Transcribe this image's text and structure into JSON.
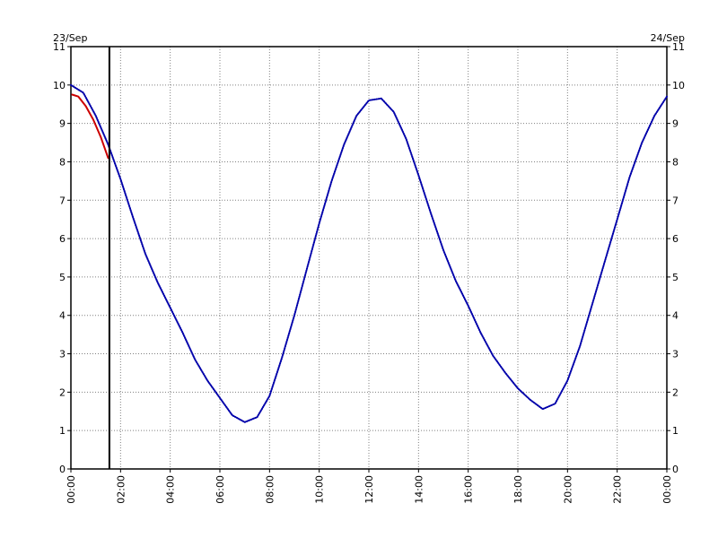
{
  "chart_data": {
    "type": "line",
    "date_left": "23/Sep",
    "date_right": "24/Sep",
    "x_unit": "hours",
    "xlim": [
      0,
      24
    ],
    "ylim": [
      0,
      11
    ],
    "x_ticks": [
      0,
      2,
      4,
      6,
      8,
      10,
      12,
      14,
      16,
      18,
      20,
      22,
      24
    ],
    "x_tick_labels": [
      "00:00",
      "02:00",
      "04:00",
      "06:00",
      "08:00",
      "10:00",
      "12:00",
      "14:00",
      "16:00",
      "18:00",
      "20:00",
      "22:00",
      "00:00"
    ],
    "y_ticks": [
      0,
      1,
      2,
      3,
      4,
      5,
      6,
      7,
      8,
      9,
      10,
      11
    ],
    "y_tick_labels": [
      "0",
      "1",
      "2",
      "3",
      "4",
      "5",
      "6",
      "7",
      "8",
      "9",
      "10",
      "11"
    ],
    "grid": true,
    "now_marker_hour": 1.55,
    "series": [
      {
        "style": "dotted",
        "color": "#0000aa",
        "points": [
          [
            0,
            10.0
          ],
          [
            0.5,
            9.8
          ],
          [
            1.0,
            9.2
          ],
          [
            1.5,
            8.45
          ],
          [
            2.0,
            7.55
          ],
          [
            2.5,
            6.55
          ],
          [
            3.0,
            5.6
          ],
          [
            3.5,
            4.85
          ],
          [
            4.0,
            4.2
          ],
          [
            4.5,
            3.55
          ],
          [
            5.0,
            2.85
          ],
          [
            5.5,
            2.3
          ],
          [
            6.0,
            1.85
          ],
          [
            6.5,
            1.4
          ],
          [
            7.0,
            1.22
          ],
          [
            7.5,
            1.35
          ],
          [
            8.0,
            1.9
          ],
          [
            8.5,
            2.9
          ],
          [
            9.0,
            4.0
          ],
          [
            9.5,
            5.2
          ],
          [
            10.0,
            6.4
          ],
          [
            10.5,
            7.5
          ],
          [
            11.0,
            8.45
          ],
          [
            11.5,
            9.2
          ],
          [
            12.0,
            9.6
          ],
          [
            12.5,
            9.65
          ],
          [
            13.0,
            9.3
          ],
          [
            13.5,
            8.6
          ],
          [
            14.0,
            7.65
          ],
          [
            14.5,
            6.65
          ],
          [
            15.0,
            5.7
          ],
          [
            15.5,
            4.9
          ],
          [
            16.0,
            4.25
          ],
          [
            16.5,
            3.55
          ],
          [
            17.0,
            2.95
          ],
          [
            17.5,
            2.5
          ],
          [
            18.0,
            2.1
          ],
          [
            18.5,
            1.8
          ],
          [
            19.0,
            1.56
          ],
          [
            19.5,
            1.7
          ],
          [
            20.0,
            2.3
          ],
          [
            20.5,
            3.2
          ],
          [
            21.0,
            4.3
          ],
          [
            21.5,
            5.4
          ],
          [
            22.0,
            6.5
          ],
          [
            22.5,
            7.6
          ],
          [
            23.0,
            8.5
          ],
          [
            23.5,
            9.2
          ],
          [
            24.0,
            9.7
          ]
        ]
      },
      {
        "style": "solid",
        "color": "#cc0000",
        "points": [
          [
            0.05,
            9.75
          ],
          [
            0.3,
            9.7
          ],
          [
            0.6,
            9.45
          ],
          [
            0.9,
            9.1
          ],
          [
            1.2,
            8.65
          ],
          [
            1.5,
            8.1
          ]
        ]
      }
    ]
  }
}
